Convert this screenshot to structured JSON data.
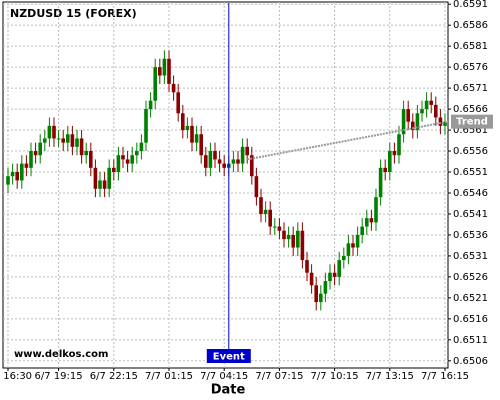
{
  "chart_data": {
    "type": "candlestick",
    "title": "NZDUSD 15 (FOREX)",
    "xlabel": "Date",
    "watermark": "www.delkos.com",
    "event_label": "Event",
    "trend_label": "Trend",
    "trend_y": [
      0.6554,
      0.6563
    ],
    "trend_color": "#999999",
    "event_color": "#0000cc",
    "up_color": "#008000",
    "down_color": "#8b0000",
    "grid": true,
    "categories": [
      "6/7 16:30",
      null,
      null,
      null,
      null,
      null,
      null,
      null,
      null,
      null,
      null,
      "6/7 19:15",
      null,
      null,
      null,
      null,
      null,
      null,
      null,
      null,
      null,
      null,
      null,
      "6/7 22:15",
      null,
      null,
      null,
      null,
      null,
      null,
      null,
      null,
      null,
      null,
      null,
      "7/7 01:15",
      null,
      null,
      null,
      null,
      null,
      null,
      null,
      null,
      null,
      null,
      null,
      "7/7 04:15",
      null,
      null,
      null,
      null,
      null,
      null,
      null,
      null,
      null,
      null,
      null,
      "7/7 07:15",
      null,
      null,
      null,
      null,
      null,
      null,
      null,
      null,
      null,
      null,
      null,
      "7/7 10:15",
      null,
      null,
      null,
      null,
      null,
      null,
      null,
      null,
      null,
      null,
      null,
      "7/7 13:15",
      null,
      null,
      null,
      null,
      null,
      null,
      null,
      null,
      null,
      null,
      null,
      "7/7 16:15"
    ],
    "open": [
      0.6548,
      0.655,
      0.6551,
      0.6549,
      0.6553,
      0.6552,
      0.6556,
      0.6555,
      0.6558,
      0.6559,
      0.6562,
      0.6559,
      0.6559,
      0.6558,
      0.656,
      0.6557,
      0.6559,
      0.6555,
      0.6556,
      0.6552,
      0.6547,
      0.6549,
      0.6547,
      0.6552,
      0.6551,
      0.6555,
      0.6554,
      0.6553,
      0.6555,
      0.6556,
      0.6558,
      0.6566,
      0.6568,
      0.6576,
      0.6574,
      0.6578,
      0.6572,
      0.657,
      0.6565,
      0.6561,
      0.6562,
      0.6558,
      0.656,
      0.6555,
      0.6552,
      0.6556,
      0.6554,
      0.6553,
      0.6552,
      0.6553,
      0.6554,
      0.6553,
      0.6557,
      0.6555,
      0.655,
      0.6545,
      0.6541,
      0.6542,
      0.6538,
      0.6538,
      0.6537,
      0.6535,
      0.6536,
      0.6533,
      0.6537,
      0.653,
      0.6527,
      0.6524,
      0.652,
      0.6522,
      0.6525,
      0.6527,
      0.6526,
      0.653,
      0.6531,
      0.6534,
      0.6533,
      0.6536,
      0.6538,
      0.654,
      0.6539,
      0.6545,
      0.6552,
      0.6551,
      0.6556,
      0.6555,
      0.656,
      0.6566,
      0.6563,
      0.6561,
      0.6565,
      0.6566,
      0.6568,
      0.6567,
      0.6564,
      0.6562
    ],
    "high": [
      0.6552,
      0.6553,
      0.6553,
      0.6555,
      0.6555,
      0.6558,
      0.6558,
      0.656,
      0.6561,
      0.6564,
      0.6564,
      0.6561,
      0.6561,
      0.6562,
      0.6562,
      0.6561,
      0.6561,
      0.6558,
      0.6558,
      0.6554,
      0.6551,
      0.6551,
      0.6554,
      0.6554,
      0.6557,
      0.6557,
      0.6556,
      0.6557,
      0.6558,
      0.656,
      0.6568,
      0.657,
      0.6578,
      0.6578,
      0.658,
      0.658,
      0.6574,
      0.6572,
      0.6567,
      0.6564,
      0.6564,
      0.6562,
      0.6562,
      0.6557,
      0.6558,
      0.6558,
      0.6556,
      0.6555,
      0.6555,
      0.6556,
      0.6556,
      0.6559,
      0.6559,
      0.6557,
      0.6552,
      0.6547,
      0.6544,
      0.6544,
      0.654,
      0.654,
      0.6539,
      0.6538,
      0.6538,
      0.6539,
      0.6539,
      0.6532,
      0.6529,
      0.6526,
      0.6524,
      0.6527,
      0.6529,
      0.6529,
      0.6532,
      0.6533,
      0.6536,
      0.6536,
      0.6538,
      0.654,
      0.6542,
      0.6542,
      0.6547,
      0.6554,
      0.6554,
      0.6558,
      0.6558,
      0.6562,
      0.6568,
      0.6568,
      0.6565,
      0.6567,
      0.6568,
      0.657,
      0.657,
      0.6569,
      0.6566,
      0.6565
    ],
    "low": [
      0.6546,
      0.6548,
      0.6547,
      0.6547,
      0.655,
      0.655,
      0.6553,
      0.6553,
      0.6556,
      0.6557,
      0.6557,
      0.6557,
      0.6556,
      0.6556,
      0.6555,
      0.6555,
      0.6553,
      0.6553,
      0.655,
      0.6545,
      0.6545,
      0.6545,
      0.6545,
      0.6549,
      0.6549,
      0.6552,
      0.6551,
      0.6551,
      0.6553,
      0.6554,
      0.6556,
      0.6564,
      0.6566,
      0.6572,
      0.6572,
      0.657,
      0.6568,
      0.6563,
      0.6559,
      0.6559,
      0.6556,
      0.6556,
      0.6553,
      0.655,
      0.655,
      0.6552,
      0.6551,
      0.655,
      0.655,
      0.6551,
      0.6551,
      0.6551,
      0.6553,
      0.6548,
      0.6543,
      0.6539,
      0.6539,
      0.6536,
      0.6536,
      0.6535,
      0.6533,
      0.6533,
      0.6531,
      0.6531,
      0.6528,
      0.6525,
      0.6522,
      0.6518,
      0.6518,
      0.652,
      0.6523,
      0.6524,
      0.6524,
      0.6528,
      0.6529,
      0.6531,
      0.6531,
      0.6534,
      0.6536,
      0.6537,
      0.6537,
      0.6543,
      0.6549,
      0.6549,
      0.6553,
      0.6553,
      0.6558,
      0.6561,
      0.6559,
      0.6559,
      0.6563,
      0.6564,
      0.6565,
      0.6562,
      0.656,
      0.656
    ],
    "close": [
      0.655,
      0.6551,
      0.6549,
      0.6553,
      0.6552,
      0.6556,
      0.6555,
      0.6558,
      0.6559,
      0.6562,
      0.6559,
      0.6559,
      0.6558,
      0.656,
      0.6557,
      0.6559,
      0.6555,
      0.6556,
      0.6552,
      0.6547,
      0.6549,
      0.6547,
      0.6552,
      0.6551,
      0.6555,
      0.6554,
      0.6553,
      0.6555,
      0.6556,
      0.6558,
      0.6566,
      0.6568,
      0.6576,
      0.6574,
      0.6578,
      0.6572,
      0.657,
      0.6565,
      0.6561,
      0.6562,
      0.6558,
      0.656,
      0.6555,
      0.6552,
      0.6556,
      0.6554,
      0.6553,
      0.6552,
      0.6553,
      0.6554,
      0.6553,
      0.6557,
      0.6555,
      0.655,
      0.6545,
      0.6541,
      0.6542,
      0.6538,
      0.6538,
      0.6537,
      0.6535,
      0.6536,
      0.6533,
      0.6537,
      0.653,
      0.6527,
      0.6524,
      0.652,
      0.6522,
      0.6525,
      0.6527,
      0.6526,
      0.653,
      0.6531,
      0.6534,
      0.6533,
      0.6536,
      0.6538,
      0.654,
      0.6539,
      0.6545,
      0.6552,
      0.6551,
      0.6556,
      0.6555,
      0.656,
      0.6566,
      0.6563,
      0.6561,
      0.6565,
      0.6566,
      0.6568,
      0.6567,
      0.6564,
      0.6562,
      0.6563
    ],
    "ylim": [
      0.6505,
      0.6592
    ],
    "yticks": [
      0.6506,
      0.6511,
      0.6516,
      0.6521,
      0.6526,
      0.6531,
      0.6536,
      0.6541,
      0.6546,
      0.6551,
      0.6556,
      0.6561,
      0.6566,
      0.6571,
      0.6576,
      0.6581,
      0.6586,
      0.6591
    ]
  }
}
